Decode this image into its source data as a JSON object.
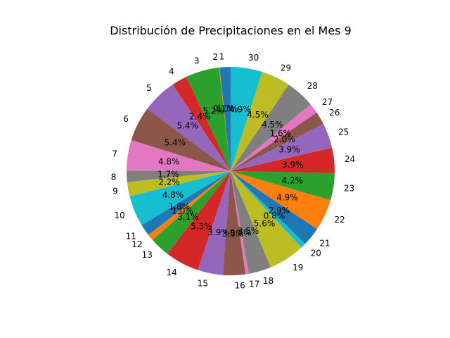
{
  "chart_data": {
    "type": "pie",
    "title": "Distribución de Precipitaciones en el Mes 9",
    "start_angle_deg": 90,
    "direction": "counterclockwise",
    "categories": [
      "1",
      "2",
      "3",
      "4",
      "5",
      "6",
      "7",
      "8",
      "9",
      "10",
      "11",
      "12",
      "13",
      "14",
      "15",
      "16",
      "17",
      "18",
      "19",
      "20",
      "21",
      "22",
      "23",
      "24",
      "25",
      "26",
      "27",
      "28",
      "29",
      "30"
    ],
    "values": [
      1.7,
      0.1,
      5.2,
      2.4,
      5.4,
      5.4,
      4.8,
      1.7,
      2.2,
      4.8,
      1.8,
      1.0,
      3.1,
      5.3,
      3.9,
      3.5,
      0.5,
      3.5,
      5.6,
      0.8,
      2.9,
      4.9,
      4.2,
      3.9,
      3.9,
      2.0,
      1.6,
      4.5,
      4.5,
      4.9
    ],
    "pct_labels": [
      "1.7%",
      "0.1%",
      "5.2%",
      "2.4%",
      "5.4%",
      "5.4%",
      "4.8%",
      "1.7%",
      "2.2%",
      "4.8%",
      "1.8%",
      "1.0%",
      "3.1%",
      "5.3%",
      "3.9%",
      "3.5%",
      "0.5%",
      "3.5%",
      "5.6%",
      "0.8%",
      "2.9%",
      "4.9%",
      "4.2%",
      "3.9%",
      "3.9%",
      "2.0%",
      "1.6%",
      "4.5%",
      "4.5%",
      "4.9%"
    ],
    "colors": [
      "#1f77b4",
      "#ff7f0e",
      "#2ca02c",
      "#d62728",
      "#9467bd",
      "#8c564b",
      "#e377c2",
      "#7f7f7f",
      "#bcbd22",
      "#17becf"
    ]
  }
}
